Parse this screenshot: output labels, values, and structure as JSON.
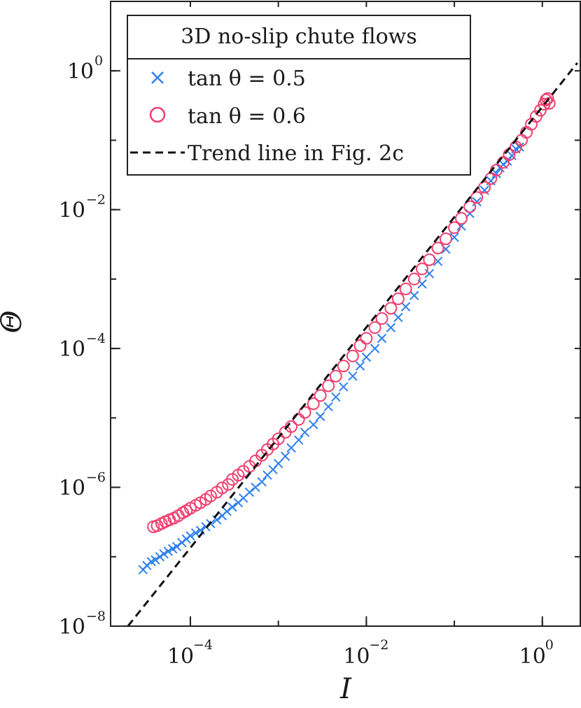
{
  "chart_data": {
    "type": "scatter",
    "xscale": "log",
    "yscale": "log",
    "xlim": [
      1.24e-05,
      2.75
    ],
    "ylim": [
      1e-08,
      10
    ],
    "xlabel": "I",
    "ylabel": "Θ",
    "xticks": [
      {
        "value": 0.0001,
        "base": "10",
        "exponent": "−4"
      },
      {
        "value": 0.01,
        "base": "10",
        "exponent": "−2"
      },
      {
        "value": 1,
        "base": "10",
        "exponent": "0"
      }
    ],
    "yticks": [
      {
        "value": 1e-08,
        "base": "10",
        "exponent": "−8"
      },
      {
        "value": 1e-06,
        "base": "10",
        "exponent": "−6"
      },
      {
        "value": 0.0001,
        "base": "10",
        "exponent": "−4"
      },
      {
        "value": 0.01,
        "base": "10",
        "exponent": "−2"
      },
      {
        "value": 1,
        "base": "10",
        "exponent": "0"
      }
    ],
    "legend": {
      "title": "3D no-slip chute flows",
      "position": "top-left",
      "entries": [
        "tan θ = 0.5",
        "tan θ = 0.6",
        "Trend line in Fig. 2c"
      ]
    },
    "series": [
      {
        "name": "tan θ = 0.5",
        "marker": "x",
        "color": "#2f80ed",
        "points": [
          [
            2.9e-05,
            6.5e-08
          ],
          [
            3.2e-05,
            7.5e-08
          ],
          [
            3.6e-05,
            8.5e-08
          ],
          [
            4e-05,
            9e-08
          ],
          [
            4.5e-05,
            1e-07
          ],
          [
            5e-05,
            1.1e-07
          ],
          [
            5.6e-05,
            1.2e-07
          ],
          [
            6.3e-05,
            1.3e-07
          ],
          [
            7e-05,
            1.4e-07
          ],
          [
            8e-05,
            1.6e-07
          ],
          [
            9e-05,
            1.8e-07
          ],
          [
            0.0001,
            2e-07
          ],
          [
            0.000115,
            2.2e-07
          ],
          [
            0.00013,
            2.4e-07
          ],
          [
            0.00015,
            2.7e-07
          ],
          [
            0.00017,
            3e-07
          ],
          [
            0.0002,
            3.4e-07
          ],
          [
            0.00023,
            3.9e-07
          ],
          [
            0.00026,
            4.5e-07
          ],
          [
            0.0003,
            5.2e-07
          ],
          [
            0.00035,
            6e-07
          ],
          [
            0.0004,
            7e-07
          ],
          [
            0.00047,
            8.5e-07
          ],
          [
            0.00055,
            1e-06
          ],
          [
            0.00065,
            1.2e-06
          ],
          [
            0.00075,
            1.5e-06
          ],
          [
            0.00087,
            1.8e-06
          ],
          [
            0.001,
            2.2e-06
          ],
          [
            0.0012,
            2.8e-06
          ],
          [
            0.0014,
            3.7e-06
          ],
          [
            0.0017,
            4.8e-06
          ],
          [
            0.002,
            6.2e-06
          ],
          [
            0.0025,
            8e-06
          ],
          [
            0.003,
            1.05e-05
          ],
          [
            0.0037,
            1.45e-05
          ],
          [
            0.0045,
            2e-05
          ],
          [
            0.0055,
            2.8e-05
          ],
          [
            0.007,
            4e-05
          ],
          [
            0.0085,
            5.6e-05
          ],
          [
            0.01,
            7.5e-05
          ],
          [
            0.0125,
            0.0001
          ],
          [
            0.015,
            0.00014
          ],
          [
            0.019,
            0.0002
          ],
          [
            0.023,
            0.00028
          ],
          [
            0.028,
            0.0004
          ],
          [
            0.035,
            0.00058
          ],
          [
            0.043,
            0.00085
          ],
          [
            0.052,
            0.0012
          ],
          [
            0.065,
            0.0018
          ],
          [
            0.08,
            0.0027
          ],
          [
            0.1,
            0.004
          ],
          [
            0.12,
            0.0058
          ],
          [
            0.15,
            0.0088
          ],
          [
            0.18,
            0.013
          ],
          [
            0.22,
            0.019
          ],
          [
            0.26,
            0.026
          ],
          [
            0.3,
            0.033
          ],
          [
            0.33,
            0.04
          ],
          [
            0.36,
            0.045
          ],
          [
            0.4,
            0.05
          ],
          [
            0.45,
            0.06
          ],
          [
            0.5,
            0.075
          ],
          [
            0.55,
            0.08
          ]
        ]
      },
      {
        "name": "tan θ = 0.6",
        "marker": "o",
        "color": "#f0406f",
        "points": [
          [
            3.8e-05,
            2.7e-07
          ],
          [
            4.2e-05,
            2.8e-07
          ],
          [
            4.7e-05,
            3e-07
          ],
          [
            5.2e-05,
            3.2e-07
          ],
          [
            5.8e-05,
            3.4e-07
          ],
          [
            6.5e-05,
            3.6e-07
          ],
          [
            7.3e-05,
            3.9e-07
          ],
          [
            8.2e-05,
            4.3e-07
          ],
          [
            9e-05,
            4.6e-07
          ],
          [
            0.0001,
            5e-07
          ],
          [
            0.000115,
            5.5e-07
          ],
          [
            0.00013,
            6e-07
          ],
          [
            0.00015,
            6.7e-07
          ],
          [
            0.00017,
            7.5e-07
          ],
          [
            0.0002,
            8.5e-07
          ],
          [
            0.00023,
            9.8e-07
          ],
          [
            0.00027,
            1.1e-06
          ],
          [
            0.0003,
            1.3e-06
          ],
          [
            0.00035,
            1.5e-06
          ],
          [
            0.0004,
            1.7e-06
          ],
          [
            0.00047,
            2e-06
          ],
          [
            0.00055,
            2.4e-06
          ],
          [
            0.00065,
            2.9e-06
          ],
          [
            0.00075,
            3.5e-06
          ],
          [
            0.00087,
            4.2e-06
          ],
          [
            0.001,
            5e-06
          ],
          [
            0.0012,
            6.2e-06
          ],
          [
            0.0014,
            7.5e-06
          ],
          [
            0.0017,
            9.5e-06
          ],
          [
            0.002,
            1.2e-05
          ],
          [
            0.0025,
            1.6e-05
          ],
          [
            0.003,
            2.1e-05
          ],
          [
            0.0037,
            2.9e-05
          ],
          [
            0.0045,
            4e-05
          ],
          [
            0.0055,
            5.6e-05
          ],
          [
            0.007,
            7.8e-05
          ],
          [
            0.0085,
            0.00011
          ],
          [
            0.01,
            0.00014
          ],
          [
            0.0125,
            0.0002
          ],
          [
            0.015,
            0.00027
          ],
          [
            0.019,
            0.00038
          ],
          [
            0.023,
            0.00052
          ],
          [
            0.028,
            0.00072
          ],
          [
            0.035,
            0.001
          ],
          [
            0.043,
            0.0014
          ],
          [
            0.052,
            0.0019
          ],
          [
            0.065,
            0.0028
          ],
          [
            0.08,
            0.0038
          ],
          [
            0.1,
            0.0055
          ],
          [
            0.12,
            0.0075
          ],
          [
            0.15,
            0.011
          ],
          [
            0.18,
            0.015
          ],
          [
            0.22,
            0.021
          ],
          [
            0.26,
            0.028
          ],
          [
            0.3,
            0.037
          ],
          [
            0.36,
            0.048
          ],
          [
            0.42,
            0.062
          ],
          [
            0.5,
            0.08
          ],
          [
            0.58,
            0.1
          ],
          [
            0.66,
            0.13
          ],
          [
            0.75,
            0.17
          ],
          [
            0.85,
            0.22
          ],
          [
            0.95,
            0.27
          ],
          [
            1.05,
            0.33
          ],
          [
            1.1,
            0.38
          ],
          [
            1.15,
            0.4
          ],
          [
            1.2,
            0.34
          ]
        ]
      },
      {
        "name": "Trend line in Fig. 2c",
        "style": "dashed",
        "color": "#111111",
        "points": [
          [
            1.95e-05,
            1e-08
          ],
          [
            2.5,
            1.3
          ]
        ]
      }
    ]
  }
}
